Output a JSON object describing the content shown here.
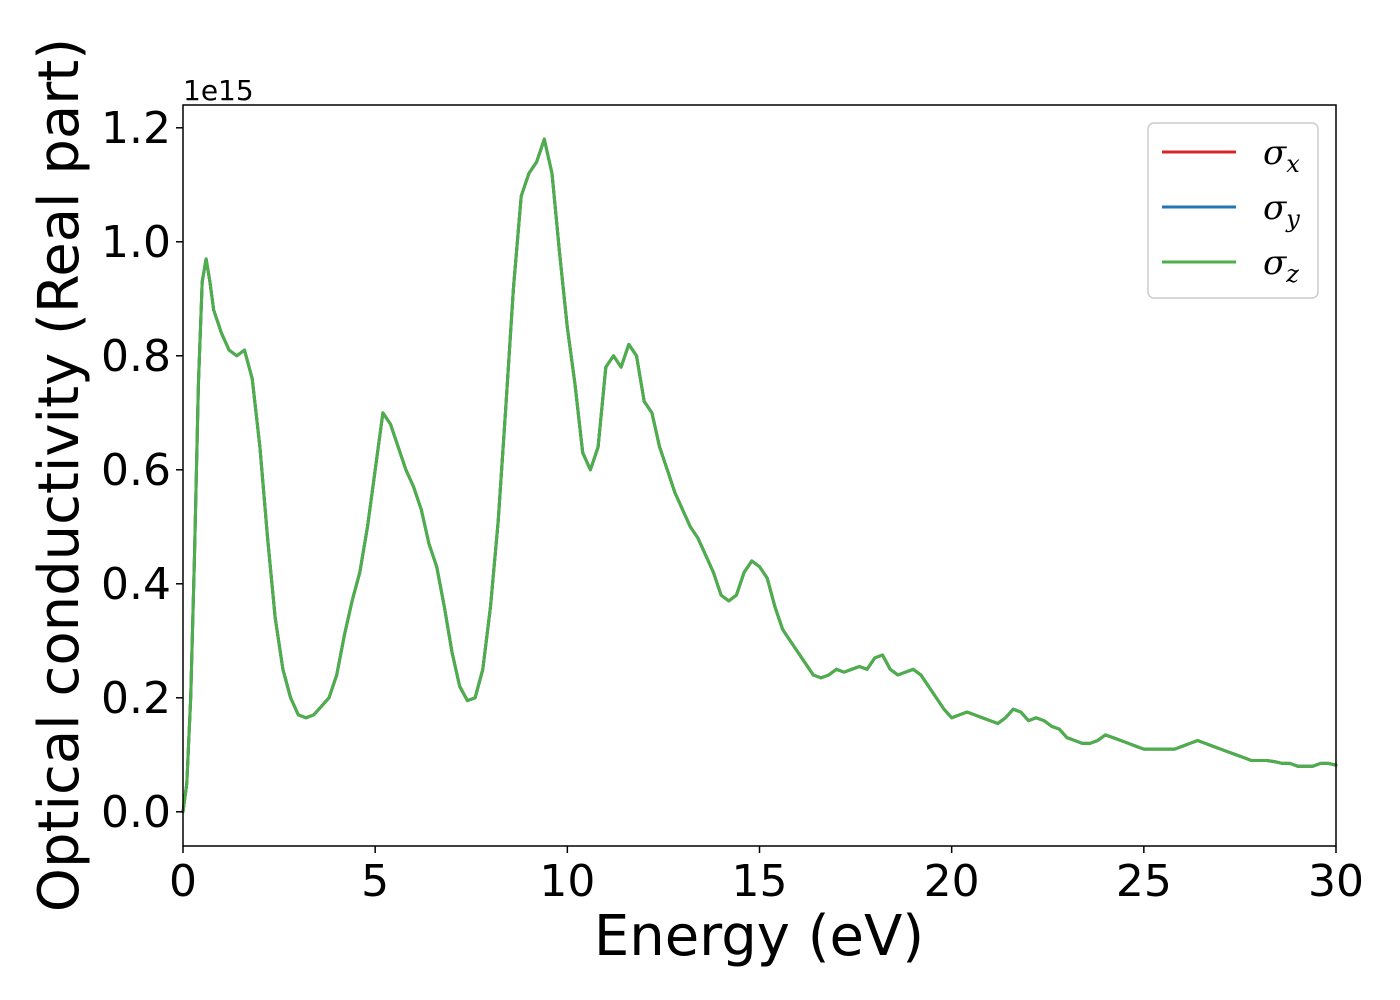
{
  "chart_data": {
    "type": "line",
    "xlabel": "Energy (eV)",
    "ylabel": "Optical conductivity (Real part)",
    "y_offset_label": "1e15",
    "xlim": [
      0,
      30
    ],
    "ylim": [
      -0.06,
      1.24
    ],
    "x_ticks": [
      "0",
      "5",
      "10",
      "15",
      "20",
      "25",
      "30"
    ],
    "y_ticks": [
      "0.0",
      "0.2",
      "0.4",
      "0.6",
      "0.8",
      "1.0",
      "1.2"
    ],
    "legend_position": "top-right",
    "grid": false,
    "colors": {
      "sigma_x": "#d62728",
      "sigma_y": "#1f77b4",
      "sigma_z": "#4daf4a"
    },
    "legend": [
      {
        "symbol": "σ",
        "sub": "x",
        "color": "#d62728"
      },
      {
        "symbol": "σ",
        "sub": "y",
        "color": "#1f77b4"
      },
      {
        "symbol": "σ",
        "sub": "z",
        "color": "#4daf4a"
      }
    ],
    "x": [
      0,
      0.1,
      0.2,
      0.3,
      0.4,
      0.5,
      0.6,
      0.7,
      0.8,
      0.9,
      1.0,
      1.2,
      1.4,
      1.6,
      1.8,
      2.0,
      2.2,
      2.4,
      2.6,
      2.8,
      3.0,
      3.2,
      3.4,
      3.6,
      3.8,
      4.0,
      4.2,
      4.4,
      4.6,
      4.8,
      5.0,
      5.2,
      5.4,
      5.6,
      5.8,
      6.0,
      6.2,
      6.4,
      6.6,
      6.8,
      7.0,
      7.2,
      7.4,
      7.6,
      7.8,
      8.0,
      8.2,
      8.4,
      8.6,
      8.8,
      9.0,
      9.2,
      9.4,
      9.6,
      9.8,
      10.0,
      10.2,
      10.4,
      10.6,
      10.8,
      11.0,
      11.2,
      11.4,
      11.6,
      11.8,
      12.0,
      12.2,
      12.4,
      12.6,
      12.8,
      13.0,
      13.2,
      13.4,
      13.6,
      13.8,
      14.0,
      14.2,
      14.4,
      14.6,
      14.8,
      15.0,
      15.2,
      15.4,
      15.6,
      15.8,
      16.0,
      16.2,
      16.4,
      16.6,
      16.8,
      17.0,
      17.2,
      17.4,
      17.6,
      17.8,
      18.0,
      18.2,
      18.4,
      18.6,
      18.8,
      19.0,
      19.2,
      19.4,
      19.6,
      19.8,
      20.0,
      20.2,
      20.4,
      20.6,
      20.8,
      21.0,
      21.2,
      21.4,
      21.6,
      21.8,
      22.0,
      22.2,
      22.4,
      22.6,
      22.8,
      23.0,
      23.2,
      23.4,
      23.6,
      23.8,
      24.0,
      24.2,
      24.4,
      24.6,
      24.8,
      25.0,
      25.2,
      25.4,
      25.6,
      25.8,
      26.0,
      26.2,
      26.4,
      26.6,
      26.8,
      27.0,
      27.2,
      27.4,
      27.6,
      27.8,
      28.0,
      28.2,
      28.4,
      28.6,
      28.8,
      29.0,
      29.2,
      29.4,
      29.6,
      29.8,
      30.0
    ],
    "series": [
      {
        "name": "σx",
        "color": "#d62728",
        "values": [
          0.0,
          0.05,
          0.2,
          0.45,
          0.75,
          0.93,
          0.97,
          0.93,
          0.88,
          0.86,
          0.84,
          0.81,
          0.8,
          0.81,
          0.76,
          0.64,
          0.48,
          0.34,
          0.25,
          0.2,
          0.17,
          0.165,
          0.17,
          0.185,
          0.2,
          0.24,
          0.31,
          0.37,
          0.42,
          0.5,
          0.6,
          0.7,
          0.68,
          0.64,
          0.6,
          0.57,
          0.53,
          0.47,
          0.43,
          0.36,
          0.28,
          0.22,
          0.195,
          0.2,
          0.25,
          0.36,
          0.51,
          0.71,
          0.92,
          1.08,
          1.12,
          1.14,
          1.18,
          1.12,
          0.98,
          0.85,
          0.75,
          0.63,
          0.6,
          0.64,
          0.78,
          0.8,
          0.78,
          0.82,
          0.8,
          0.72,
          0.7,
          0.64,
          0.6,
          0.56,
          0.53,
          0.5,
          0.48,
          0.45,
          0.42,
          0.38,
          0.37,
          0.38,
          0.42,
          0.44,
          0.43,
          0.41,
          0.36,
          0.32,
          0.3,
          0.28,
          0.26,
          0.24,
          0.235,
          0.24,
          0.25,
          0.245,
          0.25,
          0.255,
          0.25,
          0.27,
          0.275,
          0.25,
          0.24,
          0.245,
          0.25,
          0.24,
          0.22,
          0.2,
          0.18,
          0.165,
          0.17,
          0.175,
          0.17,
          0.165,
          0.16,
          0.155,
          0.165,
          0.18,
          0.175,
          0.16,
          0.165,
          0.16,
          0.15,
          0.145,
          0.13,
          0.125,
          0.12,
          0.12,
          0.125,
          0.135,
          0.13,
          0.125,
          0.12,
          0.115,
          0.11,
          0.11,
          0.11,
          0.11,
          0.11,
          0.115,
          0.12,
          0.125,
          0.12,
          0.115,
          0.11,
          0.105,
          0.1,
          0.095,
          0.09,
          0.09,
          0.09,
          0.088,
          0.085,
          0.085,
          0.08,
          0.08,
          0.08,
          0.085,
          0.085,
          0.082
        ]
      },
      {
        "name": "σy",
        "color": "#1f77b4",
        "values": [
          0.0,
          0.05,
          0.2,
          0.45,
          0.75,
          0.93,
          0.97,
          0.93,
          0.88,
          0.86,
          0.84,
          0.81,
          0.8,
          0.81,
          0.76,
          0.64,
          0.48,
          0.34,
          0.25,
          0.2,
          0.17,
          0.165,
          0.17,
          0.185,
          0.2,
          0.24,
          0.31,
          0.37,
          0.42,
          0.5,
          0.6,
          0.7,
          0.68,
          0.64,
          0.6,
          0.57,
          0.53,
          0.47,
          0.43,
          0.36,
          0.28,
          0.22,
          0.195,
          0.2,
          0.25,
          0.36,
          0.51,
          0.71,
          0.92,
          1.08,
          1.12,
          1.14,
          1.18,
          1.12,
          0.98,
          0.85,
          0.75,
          0.63,
          0.6,
          0.64,
          0.78,
          0.8,
          0.78,
          0.82,
          0.8,
          0.72,
          0.7,
          0.64,
          0.6,
          0.56,
          0.53,
          0.5,
          0.48,
          0.45,
          0.42,
          0.38,
          0.37,
          0.38,
          0.42,
          0.44,
          0.43,
          0.41,
          0.36,
          0.32,
          0.3,
          0.28,
          0.26,
          0.24,
          0.235,
          0.24,
          0.25,
          0.245,
          0.25,
          0.255,
          0.25,
          0.27,
          0.275,
          0.25,
          0.24,
          0.245,
          0.25,
          0.24,
          0.22,
          0.2,
          0.18,
          0.165,
          0.17,
          0.175,
          0.17,
          0.165,
          0.16,
          0.155,
          0.165,
          0.18,
          0.175,
          0.16,
          0.165,
          0.16,
          0.15,
          0.145,
          0.13,
          0.125,
          0.12,
          0.12,
          0.125,
          0.135,
          0.13,
          0.125,
          0.12,
          0.115,
          0.11,
          0.11,
          0.11,
          0.11,
          0.11,
          0.115,
          0.12,
          0.125,
          0.12,
          0.115,
          0.11,
          0.105,
          0.1,
          0.095,
          0.09,
          0.09,
          0.09,
          0.088,
          0.085,
          0.085,
          0.08,
          0.08,
          0.08,
          0.085,
          0.085,
          0.082
        ]
      },
      {
        "name": "σz",
        "color": "#4daf4a",
        "values": [
          0.0,
          0.05,
          0.2,
          0.45,
          0.75,
          0.93,
          0.97,
          0.93,
          0.88,
          0.86,
          0.84,
          0.81,
          0.8,
          0.81,
          0.76,
          0.64,
          0.48,
          0.34,
          0.25,
          0.2,
          0.17,
          0.165,
          0.17,
          0.185,
          0.2,
          0.24,
          0.31,
          0.37,
          0.42,
          0.5,
          0.6,
          0.7,
          0.68,
          0.64,
          0.6,
          0.57,
          0.53,
          0.47,
          0.43,
          0.36,
          0.28,
          0.22,
          0.195,
          0.2,
          0.25,
          0.36,
          0.51,
          0.71,
          0.92,
          1.08,
          1.12,
          1.14,
          1.18,
          1.12,
          0.98,
          0.85,
          0.75,
          0.63,
          0.6,
          0.64,
          0.78,
          0.8,
          0.78,
          0.82,
          0.8,
          0.72,
          0.7,
          0.64,
          0.6,
          0.56,
          0.53,
          0.5,
          0.48,
          0.45,
          0.42,
          0.38,
          0.37,
          0.38,
          0.42,
          0.44,
          0.43,
          0.41,
          0.36,
          0.32,
          0.3,
          0.28,
          0.26,
          0.24,
          0.235,
          0.24,
          0.25,
          0.245,
          0.25,
          0.255,
          0.25,
          0.27,
          0.275,
          0.25,
          0.24,
          0.245,
          0.25,
          0.24,
          0.22,
          0.2,
          0.18,
          0.165,
          0.17,
          0.175,
          0.17,
          0.165,
          0.16,
          0.155,
          0.165,
          0.18,
          0.175,
          0.16,
          0.165,
          0.16,
          0.15,
          0.145,
          0.13,
          0.125,
          0.12,
          0.12,
          0.125,
          0.135,
          0.13,
          0.125,
          0.12,
          0.115,
          0.11,
          0.11,
          0.11,
          0.11,
          0.11,
          0.115,
          0.12,
          0.125,
          0.12,
          0.115,
          0.11,
          0.105,
          0.1,
          0.095,
          0.09,
          0.09,
          0.09,
          0.088,
          0.085,
          0.085,
          0.08,
          0.08,
          0.08,
          0.085,
          0.085,
          0.082
        ]
      }
    ]
  }
}
